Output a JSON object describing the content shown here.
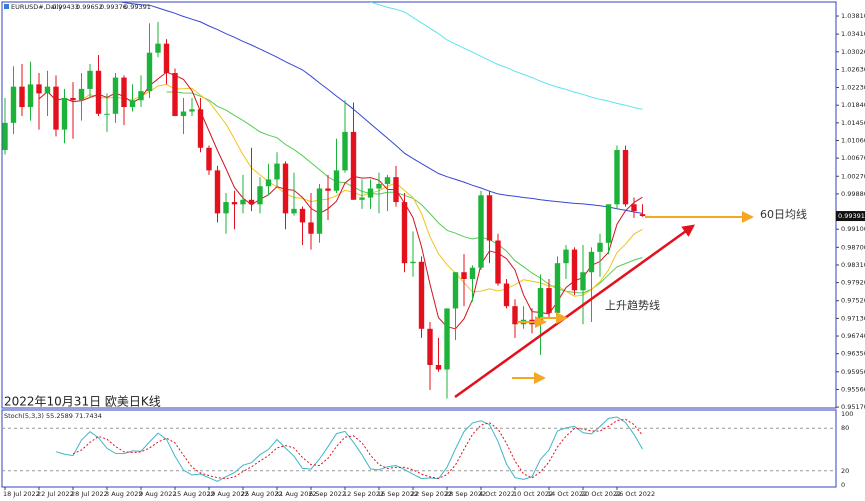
{
  "chart_data": {
    "type": "candlestick",
    "symbol": "EURUSD#,Daily",
    "title": "2022年10月31日 欧美日K线",
    "annotations": [
      "60日均线",
      "上升趋势线"
    ],
    "categories": [
      "18 Jul 2022",
      null,
      null,
      null,
      "22 Jul 2022",
      null,
      null,
      null,
      "28 Jul 2022",
      null,
      null,
      null,
      "3 Aug 2022",
      null,
      null,
      null,
      "9 Aug 2022",
      null,
      null,
      null,
      "15 Aug 2022",
      null,
      null,
      null,
      "19 Aug 2022",
      null,
      null,
      null,
      "25 Aug 2022",
      null,
      null,
      null,
      "31 Aug 2022",
      null,
      null,
      null,
      "6 Sep 2022",
      null,
      null,
      null,
      "12 Sep 2022",
      null,
      null,
      null,
      "16 Sep 2022",
      null,
      null,
      null,
      "22 Sep 2022",
      null,
      null,
      null,
      "28 Sep 2022",
      null,
      null,
      null,
      "4 Oct 2022",
      null,
      null,
      null,
      "10 Oct 2022",
      null,
      null,
      null,
      "14 Oct 2022",
      null,
      null,
      null,
      "20 Oct 2022",
      null,
      null,
      null,
      "26 Oct 2022",
      null,
      null,
      null
    ],
    "open": [
      1.0085,
      1.0145,
      1.0225,
      1.018,
      1.023,
      1.021,
      1.0225,
      1.013,
      1.02,
      1.0195,
      1.022,
      1.026,
      1.0165,
      1.0165,
      1.0245,
      1.018,
      1.0195,
      1.0215,
      1.03,
      1.032,
      1.0255,
      1.016,
      1.017,
      1.0175,
      1.009,
      1.004,
      0.9945,
      0.997,
      0.9965,
      0.9975,
      0.9965,
      1.0005,
      1.002,
      1.0055,
      0.9945,
      0.9955,
      0.9925,
      0.99,
      1.0,
      0.9995,
      1.004,
      1.0125,
      0.9975,
      0.998,
      1.0,
      1.001,
      1.0025,
      0.997,
      0.9835,
      0.9838,
      0.969,
      0.961,
      0.96,
      0.9735,
      0.9815,
      0.98,
      0.9825,
      0.9985,
      0.9885,
      0.979,
      0.974,
      0.97,
      0.971,
      0.97,
      0.978,
      0.9725,
      0.9835,
      0.9865,
      0.9775,
      0.9815,
      0.986,
      0.988,
      0.9965,
      1.0085,
      0.9965,
      0.99433
    ],
    "high": [
      1.02,
      1.027,
      1.0275,
      1.028,
      1.0255,
      1.026,
      1.025,
      1.022,
      1.0235,
      1.0255,
      1.0275,
      1.0295,
      1.021,
      1.0255,
      1.025,
      1.023,
      1.025,
      1.0365,
      1.0368,
      1.033,
      1.0265,
      1.02,
      1.02,
      1.02,
      1.0095,
      1.005,
      0.999,
      0.9995,
      1.003,
      1.009,
      1.0025,
      1.0055,
      1.008,
      1.006,
      1.0035,
      0.996,
      0.999,
      1.001,
      1.003,
      1.011,
      1.0195,
      1.019,
      1.002,
      1.002,
      1.0035,
      1.003,
      1.005,
      0.999,
      0.9905,
      0.985,
      0.9705,
      0.967,
      0.9735,
      0.9815,
      0.9855,
      0.983,
      0.9995,
      0.9995,
      0.99,
      0.98,
      0.9755,
      0.974,
      0.9735,
      0.981,
      0.98,
      0.985,
      0.9875,
      0.987,
      0.9875,
      0.987,
      0.99,
      0.9965,
      1.0095,
      1.0095,
      0.998,
      0.99652
    ],
    "low": [
      1.0075,
      1.012,
      1.016,
      1.015,
      1.013,
      1.016,
      1.0115,
      1.01,
      1.011,
      1.015,
      1.02,
      1.016,
      1.0125,
      1.0145,
      1.014,
      1.017,
      1.018,
      1.02,
      1.029,
      1.023,
      1.016,
      1.012,
      1.016,
      1.008,
      1.003,
      0.9925,
      0.99,
      0.991,
      0.9945,
      0.995,
      0.9945,
      0.9985,
      1.0005,
      0.991,
      0.994,
      0.9875,
      0.9865,
      0.988,
      0.993,
      0.999,
      1.0035,
      0.9975,
      0.9955,
      0.9955,
      0.9945,
      0.995,
      0.996,
      0.9815,
      0.9805,
      0.967,
      0.9555,
      0.9595,
      0.9536,
      0.9665,
      0.974,
      0.975,
      0.982,
      0.9835,
      0.9785,
      0.9735,
      0.967,
      0.969,
      0.968,
      0.9632,
      0.9715,
      0.9725,
      0.98,
      0.9765,
      0.97,
      0.9705,
      0.9805,
      0.9855,
      0.9955,
      0.996,
      0.9935,
      0.99376
    ],
    "close": [
      1.0145,
      1.0225,
      1.018,
      1.023,
      1.021,
      1.0225,
      1.013,
      1.02,
      1.0195,
      1.022,
      1.026,
      1.0165,
      1.0165,
      1.0245,
      1.018,
      1.0195,
      1.0215,
      1.03,
      1.032,
      1.0255,
      1.016,
      1.017,
      1.0175,
      1.009,
      1.004,
      0.9945,
      0.997,
      0.9965,
      0.9975,
      0.9965,
      1.0005,
      1.002,
      1.0055,
      0.9945,
      0.9955,
      0.9925,
      0.99,
      1.0,
      0.9995,
      1.004,
      1.0125,
      0.9975,
      0.998,
      1.0,
      1.001,
      1.0025,
      0.997,
      0.9835,
      0.9838,
      0.969,
      0.961,
      0.96,
      0.9735,
      0.9815,
      0.98,
      0.9825,
      0.9985,
      0.9885,
      0.979,
      0.974,
      0.97,
      0.971,
      0.97,
      0.978,
      0.9725,
      0.9835,
      0.9865,
      0.9775,
      0.9815,
      0.986,
      0.988,
      0.9965,
      1.0085,
      0.9965,
      0.995,
      0.99391
    ],
    "up_color": "#1db33a",
    "down_color": "#e3101e",
    "overlays": [
      {
        "color": "#3547d4",
        "values": [
          null,
          null,
          null,
          null,
          null,
          null,
          null,
          null,
          null,
          null,
          null,
          1.042,
          1.0417,
          1.0414,
          1.0411,
          1.0408,
          1.0406,
          1.0405,
          1.0399,
          1.0393,
          1.0387,
          1.038,
          1.0374,
          1.0368,
          1.0359,
          1.0351,
          1.0342,
          1.0334,
          1.0325,
          1.0317,
          1.0308,
          1.0299,
          1.029,
          1.028,
          1.0271,
          1.0262,
          1.0248,
          1.0233,
          1.0219,
          1.0204,
          1.019,
          1.0175,
          1.0159,
          1.0143,
          1.0127,
          1.0111,
          1.0095,
          1.0078,
          1.0066,
          1.0055,
          1.0044,
          1.0033,
          1.0026,
          1.002,
          1.0014,
          1.0007,
          1.0001,
          0.9994,
          0.9988,
          0.9985,
          0.9983,
          0.998,
          0.9978,
          0.9975,
          0.9973,
          0.9971,
          0.9969,
          0.9967,
          0.9966,
          0.9964,
          0.9962,
          0.9959,
          0.9955,
          0.9952,
          0.9948,
          0.9945
        ]
      },
      {
        "color": "#5fe3ee",
        "values": [
          null,
          null,
          null,
          null,
          null,
          null,
          null,
          null,
          null,
          null,
          null,
          null,
          null,
          null,
          null,
          null,
          null,
          null,
          null,
          null,
          null,
          null,
          null,
          null,
          null,
          null,
          null,
          null,
          null,
          null,
          null,
          null,
          null,
          null,
          null,
          null,
          null,
          null,
          null,
          null,
          null,
          null,
          null,
          1.0412,
          1.0406,
          1.04,
          1.0396,
          1.039,
          1.0378,
          1.0366,
          1.0354,
          1.0342,
          1.0328,
          1.0319,
          1.031,
          1.0301,
          1.0292,
          1.0283,
          1.0274,
          1.0267,
          1.0259,
          1.0252,
          1.0245,
          1.0237,
          1.023,
          1.0224,
          1.0219,
          1.0213,
          1.0208,
          1.0202,
          1.0197,
          1.0193,
          1.0188,
          1.0184,
          1.0179,
          1.0175
        ]
      }
    ],
    "ylim": [
      0.9515,
      1.0412
    ],
    "yticks": [
      {
        "value": 1.0381,
        "label": "1.03810"
      },
      {
        "value": 1.0341,
        "label": "1.03410"
      },
      {
        "value": 1.0302,
        "label": "1.03020"
      },
      {
        "value": 1.0263,
        "label": "1.02630"
      },
      {
        "value": 1.0223,
        "label": "1.02230"
      },
      {
        "value": 1.0184,
        "label": "1.01840"
      },
      {
        "value": 1.0145,
        "label": "1.01450"
      },
      {
        "value": 1.0106,
        "label": "1.01060"
      },
      {
        "value": 1.0067,
        "label": "1.00670"
      },
      {
        "value": 1.0027,
        "label": "1.00270"
      },
      {
        "value": 0.9988,
        "label": "0.99880"
      },
      {
        "value": 0.991,
        "label": "0.99100"
      },
      {
        "value": 0.987,
        "label": "0.98700"
      },
      {
        "value": 0.9831,
        "label": "0.98310"
      },
      {
        "value": 0.9792,
        "label": "0.97920"
      },
      {
        "value": 0.9752,
        "label": "0.97520"
      },
      {
        "value": 0.9713,
        "label": "0.97130"
      },
      {
        "value": 0.9674,
        "label": "0.96740"
      },
      {
        "value": 0.9635,
        "label": "0.96350"
      },
      {
        "value": 0.9595,
        "label": "0.95950"
      },
      {
        "value": 0.9556,
        "label": "0.95560"
      },
      {
        "value": 0.9517,
        "label": "0.95170"
      }
    ],
    "indicator": {
      "label": "Stoch(5,3,3) 55.2589 71.7434",
      "ylim": [
        0,
        100
      ],
      "yticks": [
        100,
        80,
        20,
        0
      ],
      "k_color": "#3fb6c8",
      "d_color": "#e3101e"
    }
  }
}
